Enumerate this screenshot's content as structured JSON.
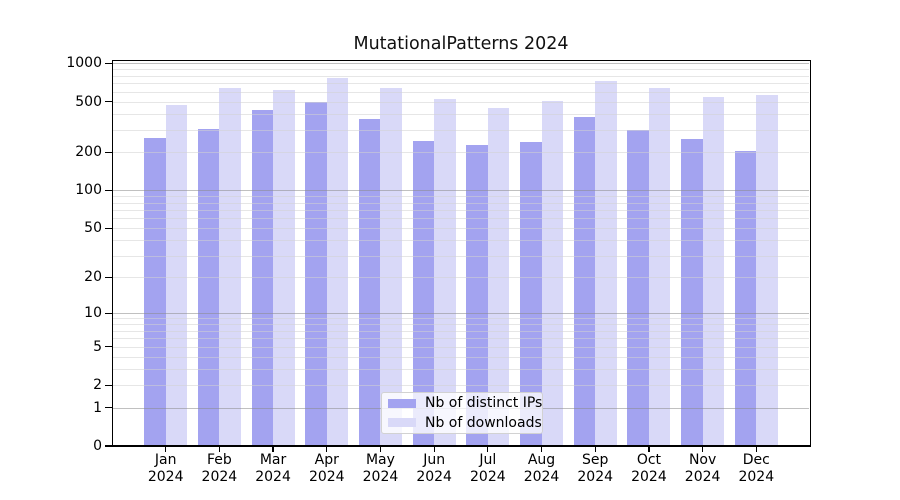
{
  "chart_data": {
    "type": "bar",
    "title": "MutationalPatterns 2024",
    "x_year": "2024",
    "categories": [
      "Jan",
      "Feb",
      "Mar",
      "Apr",
      "May",
      "Jun",
      "Jul",
      "Aug",
      "Sep",
      "Oct",
      "Nov",
      "Dec"
    ],
    "series": [
      {
        "name": "Nb of distinct IPs",
        "color": "#a3a3f0",
        "values": [
          258,
          304,
          430,
          495,
          365,
          245,
          228,
          242,
          380,
          300,
          255,
          205
        ]
      },
      {
        "name": "Nb of downloads",
        "color": "#d9d9f8",
        "values": [
          470,
          638,
          620,
          765,
          638,
          525,
          445,
          506,
          731,
          638,
          549,
          561
        ]
      }
    ],
    "y_scale": "log1p",
    "ylim": [
      0,
      1000
    ],
    "y_ticks": [
      0,
      1,
      2,
      5,
      10,
      20,
      50,
      100,
      200,
      500,
      1000
    ],
    "grid": {
      "major_at": [
        1,
        10,
        100,
        1000
      ],
      "minor_decades": [
        0,
        1,
        2
      ],
      "grid_on": true
    },
    "legend": {
      "position": "bottom-center",
      "labels": [
        "Nb of distinct IPs",
        "Nb of downloads"
      ]
    }
  }
}
